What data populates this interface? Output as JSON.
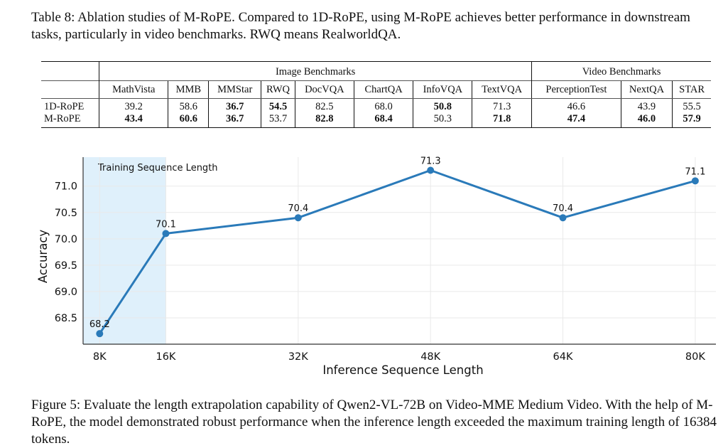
{
  "table": {
    "caption": "Table 8: Ablation studies of M-RoPE. Compared to 1D-RoPE, using M-RoPE achieves better performance in downstream tasks, particularly in video benchmarks. RWQ means RealworldQA.",
    "group_headers": [
      "Image Benchmarks",
      "Video Benchmarks"
    ],
    "columns": [
      "MathVista",
      "MMB",
      "MMStar",
      "RWQ",
      "DocVQA",
      "ChartQA",
      "InfoVQA",
      "TextVQA",
      "PerceptionTest",
      "NextQA",
      "STAR"
    ],
    "rows": [
      {
        "name": "1D-RoPE",
        "values": [
          "39.2",
          "58.6",
          "36.7",
          "54.5",
          "82.5",
          "68.0",
          "50.8",
          "71.3",
          "46.6",
          "43.9",
          "55.5"
        ]
      },
      {
        "name": "M-RoPE",
        "values": [
          "43.4",
          "60.6",
          "36.7",
          "53.7",
          "82.8",
          "68.4",
          "50.3",
          "71.8",
          "47.4",
          "46.0",
          "57.9"
        ]
      }
    ],
    "bold": [
      [
        false,
        false,
        true,
        true,
        false,
        false,
        true,
        false,
        false,
        false,
        false
      ],
      [
        true,
        true,
        true,
        false,
        true,
        true,
        false,
        true,
        true,
        true,
        true
      ]
    ]
  },
  "figure": {
    "caption": "Figure 5: Evaluate the length extrapolation capability of Qwen2-VL-72B on Video-MME Medium Video. With the help of M-RoPE, the model demonstrated robust performance when the inference length exceeded the maximum training length of 16384 tokens."
  },
  "chart_data": {
    "type": "line",
    "title": "",
    "xlabel": "Inference Sequence Length",
    "ylabel": "Accuracy",
    "x": [
      8,
      16,
      32,
      48,
      64,
      80
    ],
    "xtick_labels": [
      "8K",
      "16K",
      "32K",
      "48K",
      "64K",
      "80K"
    ],
    "y": [
      68.2,
      70.1,
      70.4,
      71.3,
      70.4,
      71.1
    ],
    "point_labels": [
      "68.2",
      "70.1",
      "70.4",
      "71.3",
      "70.4",
      "71.1"
    ],
    "yticks": [
      68.5,
      69.0,
      69.5,
      70.0,
      70.5,
      71.0
    ],
    "ytick_labels": [
      "68.5",
      "69.0",
      "69.5",
      "70.0",
      "70.5",
      "71.0"
    ],
    "xlim": [
      6,
      82.5
    ],
    "ylim": [
      68.0,
      71.55
    ],
    "grid": true,
    "shaded_region": {
      "x_from": 6,
      "x_to": 16,
      "label": "Training Sequence Length",
      "color": "#dff0fb"
    },
    "line_color": "#2a7ab9"
  }
}
